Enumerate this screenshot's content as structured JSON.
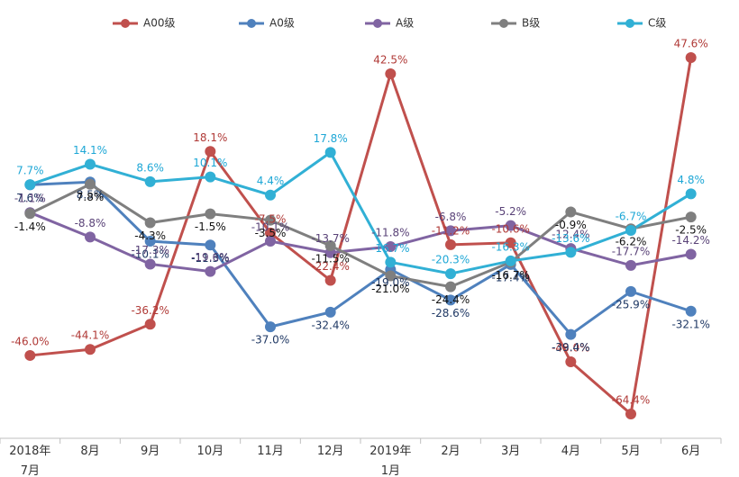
{
  "chart_data": {
    "type": "line",
    "categories": [
      "2018年7月",
      "8月",
      "9月",
      "10月",
      "11月",
      "12月",
      "2019年1月",
      "2月",
      "3月",
      "4月",
      "5月",
      "6月"
    ],
    "series": [
      {
        "name": "A00级",
        "color": "#c0504d",
        "label_color": "#b03a37",
        "values": [
          -46.0,
          -44.1,
          -36.2,
          18.1,
          -7.5,
          -22.4,
          42.5,
          -11.2,
          -10.6,
          -48.0,
          -64.4,
          47.6
        ],
        "value_labels": [
          "-46.0%",
          "-44.1%",
          "-36.2%",
          "18.1%",
          "-7.5%",
          "-22.4%",
          "42.5%",
          "-11.2%",
          "-10.6%",
          "-48.0%",
          "-64.4%",
          "47.6%"
        ]
      },
      {
        "name": "A0级",
        "color": "#4f81bd",
        "label_color": "#1f3864",
        "values": [
          7.6,
          8.5,
          -10.1,
          -11.3,
          -37.0,
          -32.4,
          -19.0,
          -28.6,
          -17.4,
          -39.4,
          -25.9,
          -32.1
        ],
        "value_labels": [
          "7.6%",
          "8.5%",
          "-10.1%",
          "-11.3%",
          "-37.0%",
          "-32.4%",
          "-19.0%",
          "-28.6%",
          "-17.4%",
          "-39.4%",
          "-25.9%",
          "-32.1%"
        ]
      },
      {
        "name": "A级",
        "color": "#8064a2",
        "label_color": "#5a4378",
        "values": [
          -1.1,
          -8.8,
          -17.3,
          -19.6,
          -10.1,
          -13.7,
          -11.8,
          -6.8,
          -5.2,
          -12.4,
          -17.7,
          -14.2
        ],
        "value_labels": [
          "-1.1%",
          "-8.8%",
          "-17.3%",
          "-19.6%",
          "-10.1%",
          "-13.7%",
          "-11.8%",
          "-6.8%",
          "-5.2%",
          "-12.4%",
          "-17.7%",
          "-14.2%"
        ]
      },
      {
        "name": "B级",
        "color": "#7f7f7f",
        "label_color": "#111111",
        "values": [
          -1.4,
          7.8,
          -4.3,
          -1.5,
          -3.5,
          -11.5,
          -21.0,
          -24.4,
          -16.7,
          -0.9,
          -6.2,
          -2.5
        ],
        "value_labels": [
          "-1.4%",
          "7.8%",
          "-4.3%",
          "-1.5%",
          "-3.5%",
          "-11.5%",
          "-21.0%",
          "-24.4%",
          "-16.7%",
          "-0.9%",
          "-6.2%",
          "-2.5%"
        ]
      },
      {
        "name": "C级",
        "color": "#31b0d5",
        "label_color": "#1ea7d6",
        "values": [
          7.7,
          14.1,
          8.6,
          10.1,
          4.4,
          17.8,
          -16.7,
          -20.3,
          -16.3,
          -13.6,
          -6.7,
          4.8
        ],
        "value_labels": [
          "7.7%",
          "14.1%",
          "8.6%",
          "10.1%",
          "4.4%",
          "17.8%",
          "-16.7%",
          "-20.3%",
          "-16.3%",
          "-13.6%",
          "-6.7%",
          "4.8%"
        ]
      }
    ]
  }
}
